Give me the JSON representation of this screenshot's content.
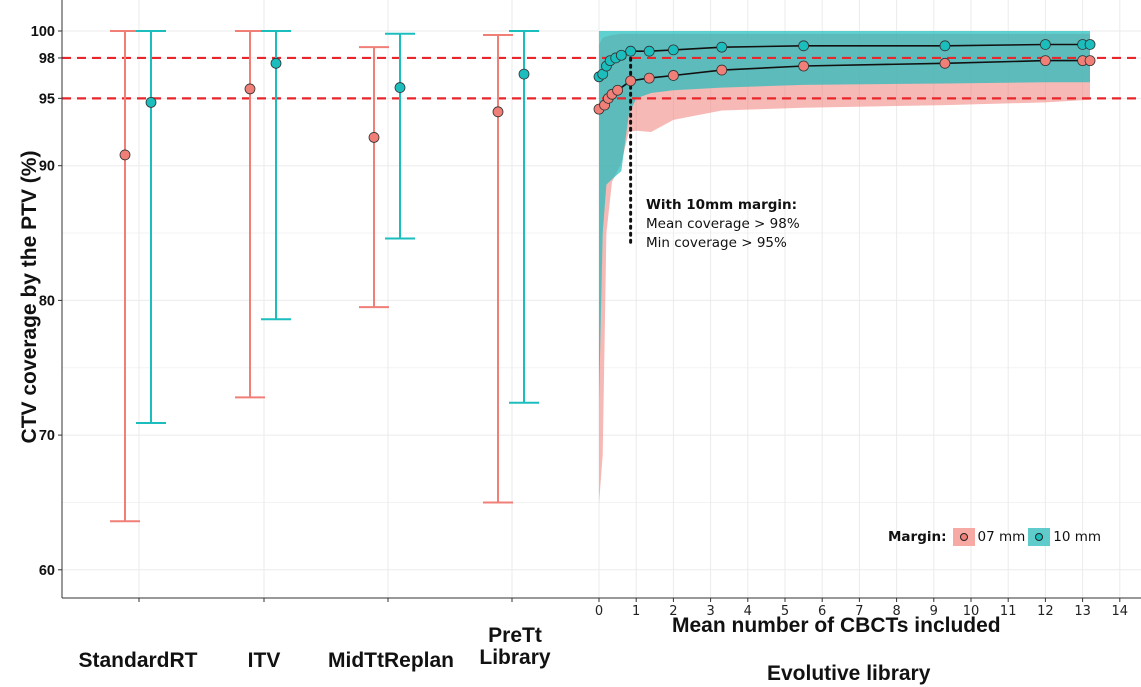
{
  "chart_data": {
    "type": "scatter",
    "ylabel": "CTV coverage by the PTV (%)",
    "y_ticks": [
      "60",
      "70",
      "80",
      "90",
      "95",
      "98",
      "100"
    ],
    "ylim": [
      58,
      101.5
    ],
    "reference_lines": [
      98,
      95
    ],
    "colors": {
      "07 mm": "#F07F78",
      "10 mm": "#1BBDBD",
      "reference": "#E8262B"
    },
    "legend": {
      "title": "Margin:",
      "entries": [
        "07 mm",
        "10 mm"
      ],
      "placement": "bottom-right"
    },
    "categories": [
      "StandardRT",
      "ITV",
      "MidTtReplan",
      "PreTt\nLibrary"
    ],
    "strategies": [
      {
        "name": "StandardRT",
        "margin_07": {
          "mean": 90.8,
          "min": 63.6,
          "max": 100
        },
        "margin_10": {
          "mean": 94.7,
          "min": 70.9,
          "max": 100
        }
      },
      {
        "name": "ITV",
        "margin_07": {
          "mean": 95.7,
          "min": 72.8,
          "max": 100
        },
        "margin_10": {
          "mean": 97.6,
          "min": 78.6,
          "max": 100
        }
      },
      {
        "name": "MidTtReplan",
        "margin_07": {
          "mean": 92.1,
          "min": 79.5,
          "max": 98.8
        },
        "margin_10": {
          "mean": 95.8,
          "min": 84.6,
          "max": 99.8
        }
      },
      {
        "name": "PreTt\nLibrary",
        "margin_07": {
          "mean": 94.0,
          "min": 65.0,
          "max": 99.7
        },
        "margin_10": {
          "mean": 96.8,
          "min": 72.4,
          "max": 100
        }
      }
    ],
    "evolutive": {
      "xlabel": "Mean number of CBCTs included",
      "group_label": "Evolutive library",
      "x_ticks": [
        "0",
        "1",
        "2",
        "3",
        "4",
        "5",
        "6",
        "7",
        "8",
        "9",
        "10",
        "11",
        "12",
        "13",
        "14"
      ],
      "xlim": [
        0,
        14
      ],
      "series": [
        {
          "name": "07 mm",
          "x": [
            0,
            0.15,
            0.25,
            0.35,
            0.5,
            0.85,
            1.35,
            2.0,
            3.3,
            5.5,
            9.3,
            12.0,
            13.0,
            13.2
          ],
          "y": [
            94.2,
            94.5,
            95.0,
            95.3,
            95.6,
            96.3,
            96.5,
            96.7,
            97.1,
            97.4,
            97.6,
            97.8,
            97.8,
            97.8
          ],
          "band_x": [
            0,
            0.1,
            0.2,
            0.35,
            0.6,
            0.8,
            1.0,
            1.4,
            2.0,
            3.3,
            5.5,
            9.3,
            12.0,
            13.2
          ],
          "band_min": [
            64.9,
            68.5,
            85.0,
            88.8,
            90.2,
            92.5,
            92.6,
            92.5,
            93.4,
            94.1,
            94.3,
            94.5,
            94.7,
            94.9
          ],
          "band_max": [
            99.0,
            99.5,
            99.6,
            99.7,
            99.8,
            99.8,
            99.8,
            99.8,
            99.8,
            99.8,
            99.8,
            99.8,
            99.8,
            99.8
          ]
        },
        {
          "name": "10 mm",
          "x": [
            0,
            0.1,
            0.2,
            0.3,
            0.45,
            0.6,
            0.85,
            1.35,
            2.0,
            3.3,
            5.5,
            9.3,
            12.0,
            13.0,
            13.2
          ],
          "y": [
            96.6,
            96.8,
            97.4,
            97.8,
            98.0,
            98.2,
            98.5,
            98.5,
            98.6,
            98.8,
            98.9,
            98.9,
            99.0,
            99.0,
            99.0
          ],
          "band_x": [
            0,
            0.1,
            0.2,
            0.35,
            0.6,
            0.8,
            1.0,
            1.4,
            2.0,
            3.3,
            5.5,
            9.3,
            12.0,
            13.2
          ],
          "band_min": [
            72.4,
            85.0,
            88.6,
            89.0,
            89.6,
            93.8,
            95.0,
            95.4,
            95.6,
            95.8,
            96.0,
            96.1,
            96.2,
            96.2
          ],
          "band_max": [
            100,
            100,
            100,
            100,
            100,
            100,
            100,
            100,
            100,
            100,
            100,
            100,
            100,
            100
          ]
        }
      ],
      "annotation": {
        "x": 0.85,
        "title": "With 10mm margin:",
        "lines": [
          "Mean coverage > 98%",
          "Min coverage > 95%"
        ]
      }
    }
  }
}
